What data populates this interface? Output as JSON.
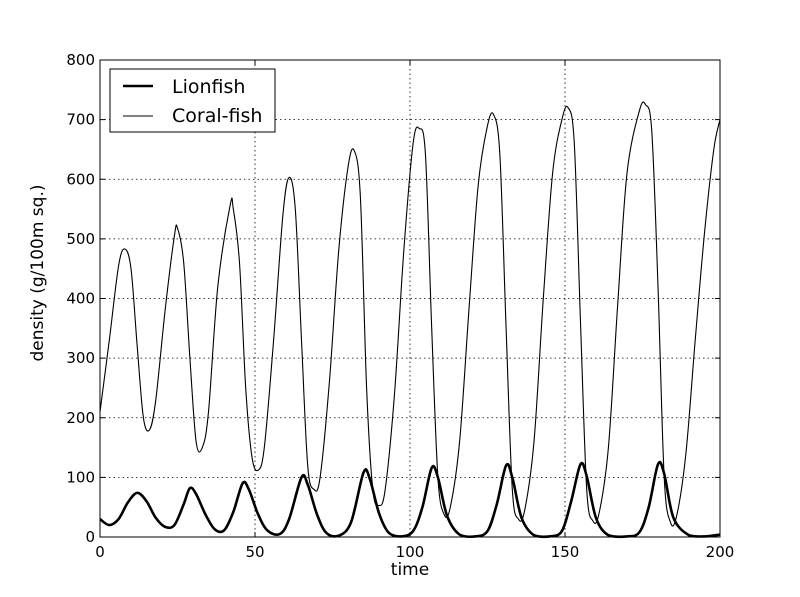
{
  "chart_data": {
    "type": "line",
    "title": "",
    "xlabel": "time",
    "ylabel": "density (g/100m sq.)",
    "xlim": [
      0,
      200
    ],
    "ylim": [
      0,
      800
    ],
    "xticks": [
      0,
      50,
      100,
      150,
      200
    ],
    "yticks": [
      0,
      100,
      200,
      300,
      400,
      500,
      600,
      700,
      800
    ],
    "grid": true,
    "legend_position": "top-left",
    "series": [
      {
        "name": "Lionfish",
        "style": "thick",
        "color": "#000000",
        "keypoints": [
          [
            0,
            30
          ],
          [
            3,
            20
          ],
          [
            6,
            30
          ],
          [
            9,
            58
          ],
          [
            12,
            74
          ],
          [
            15,
            60
          ],
          [
            18,
            32
          ],
          [
            21,
            17
          ],
          [
            24,
            20
          ],
          [
            27,
            55
          ],
          [
            29,
            82
          ],
          [
            31,
            72
          ],
          [
            34,
            38
          ],
          [
            37,
            13
          ],
          [
            40,
            11
          ],
          [
            43,
            42
          ],
          [
            46,
            90
          ],
          [
            48,
            80
          ],
          [
            51,
            38
          ],
          [
            54,
            11
          ],
          [
            58,
            5
          ],
          [
            61,
            30
          ],
          [
            65,
            100
          ],
          [
            67,
            88
          ],
          [
            70,
            38
          ],
          [
            73,
            7
          ],
          [
            77,
            2
          ],
          [
            81,
            25
          ],
          [
            85,
            108
          ],
          [
            87,
            98
          ],
          [
            90,
            40
          ],
          [
            93,
            8
          ],
          [
            97,
            1
          ],
          [
            101,
            10
          ],
          [
            104,
            50
          ],
          [
            107,
            116
          ],
          [
            109,
            100
          ],
          [
            112,
            35
          ],
          [
            116,
            4
          ],
          [
            121,
            1
          ],
          [
            125,
            10
          ],
          [
            128,
            55
          ],
          [
            131,
            120
          ],
          [
            133,
            100
          ],
          [
            136,
            32
          ],
          [
            140,
            3
          ],
          [
            145,
            1
          ],
          [
            149,
            10
          ],
          [
            152,
            60
          ],
          [
            155,
            122
          ],
          [
            157,
            102
          ],
          [
            160,
            32
          ],
          [
            164,
            3
          ],
          [
            170,
            1
          ],
          [
            174,
            8
          ],
          [
            177,
            50
          ],
          [
            180,
            122
          ],
          [
            182,
            106
          ],
          [
            185,
            32
          ],
          [
            190,
            3
          ],
          [
            195,
            1
          ],
          [
            200,
            4
          ]
        ]
      },
      {
        "name": "Coral-fish",
        "style": "thin",
        "color": "#000000",
        "keypoints": [
          [
            0,
            210
          ],
          [
            3,
            330
          ],
          [
            6,
            455
          ],
          [
            8,
            483
          ],
          [
            10,
            450
          ],
          [
            12,
            320
          ],
          [
            14,
            200
          ],
          [
            16,
            180
          ],
          [
            18,
            230
          ],
          [
            21,
            380
          ],
          [
            24,
            505
          ],
          [
            25,
            518
          ],
          [
            27,
            460
          ],
          [
            29,
            300
          ],
          [
            31,
            160
          ],
          [
            33,
            150
          ],
          [
            35,
            210
          ],
          [
            38,
            420
          ],
          [
            42,
            557
          ],
          [
            43,
            550
          ],
          [
            45,
            460
          ],
          [
            47,
            250
          ],
          [
            49,
            135
          ],
          [
            51,
            112
          ],
          [
            53,
            150
          ],
          [
            56,
            330
          ],
          [
            59,
            540
          ],
          [
            61,
            603
          ],
          [
            63,
            550
          ],
          [
            65,
            330
          ],
          [
            67,
            120
          ],
          [
            69,
            80
          ],
          [
            71,
            100
          ],
          [
            74,
            260
          ],
          [
            77,
            480
          ],
          [
            80,
            620
          ],
          [
            82,
            648
          ],
          [
            84,
            570
          ],
          [
            86,
            250
          ],
          [
            88,
            80
          ],
          [
            90,
            53
          ],
          [
            92,
            80
          ],
          [
            95,
            240
          ],
          [
            98,
            480
          ],
          [
            101,
            660
          ],
          [
            103,
            685
          ],
          [
            105,
            640
          ],
          [
            107,
            350
          ],
          [
            109,
            100
          ],
          [
            111,
            38
          ],
          [
            113,
            50
          ],
          [
            116,
            160
          ],
          [
            119,
            380
          ],
          [
            122,
            590
          ],
          [
            125,
            690
          ],
          [
            127,
            708
          ],
          [
            129,
            640
          ],
          [
            131,
            350
          ],
          [
            133,
            80
          ],
          [
            135,
            30
          ],
          [
            137,
            45
          ],
          [
            140,
            160
          ],
          [
            143,
            400
          ],
          [
            146,
            610
          ],
          [
            149,
            700
          ],
          [
            151,
            720
          ],
          [
            153,
            660
          ],
          [
            155,
            360
          ],
          [
            157,
            80
          ],
          [
            159,
            27
          ],
          [
            161,
            40
          ],
          [
            164,
            150
          ],
          [
            167,
            390
          ],
          [
            170,
            610
          ],
          [
            174,
            715
          ],
          [
            176,
            725
          ],
          [
            178,
            680
          ],
          [
            180,
            420
          ],
          [
            182,
            100
          ],
          [
            184,
            25
          ],
          [
            186,
            35
          ],
          [
            189,
            140
          ],
          [
            192,
            330
          ],
          [
            195,
            510
          ],
          [
            198,
            650
          ],
          [
            200,
            700
          ]
        ]
      }
    ]
  }
}
